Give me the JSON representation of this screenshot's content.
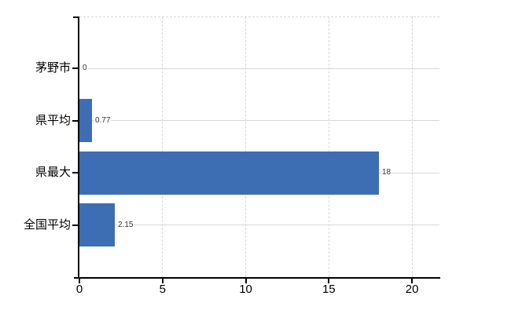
{
  "chart_data": {
    "type": "bar",
    "orientation": "horizontal",
    "title": "",
    "xlabel": "",
    "ylabel": "",
    "categories": [
      "茅野市",
      "県平均",
      "県最大",
      "全国平均"
    ],
    "values": [
      0,
      0.77,
      18,
      2.15
    ],
    "value_labels": [
      "0",
      "0.77",
      "18",
      "2.15"
    ],
    "xlim": [
      0,
      21.65
    ],
    "xticks": [
      0,
      5,
      10,
      15,
      20
    ],
    "xtick_labels": [
      "0",
      "5",
      "10",
      "15",
      "20"
    ],
    "grid": true,
    "legend": false,
    "colors": {
      "bar": "#3d6db3",
      "axis": "#000000",
      "gridline": "#d8d8d8",
      "category_text": "#000000",
      "value_text": "#333333",
      "background": "#ffffff"
    }
  }
}
